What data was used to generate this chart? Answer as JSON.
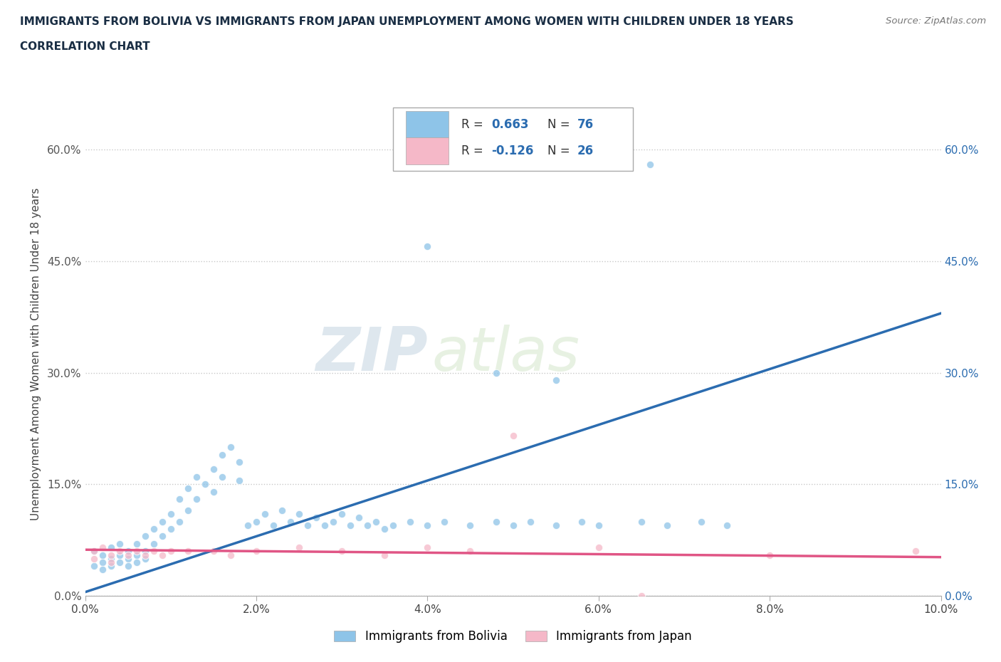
{
  "title_line1": "IMMIGRANTS FROM BOLIVIA VS IMMIGRANTS FROM JAPAN UNEMPLOYMENT AMONG WOMEN WITH CHILDREN UNDER 18 YEARS",
  "title_line2": "CORRELATION CHART",
  "source": "Source: ZipAtlas.com",
  "ylabel": "Unemployment Among Women with Children Under 18 years",
  "xlim": [
    0.0,
    0.1
  ],
  "ylim": [
    0.0,
    0.65
  ],
  "xticks": [
    0.0,
    0.02,
    0.04,
    0.06,
    0.08,
    0.1
  ],
  "yticks": [
    0.0,
    0.15,
    0.3,
    0.45,
    0.6
  ],
  "xticklabels": [
    "0.0%",
    "2.0%",
    "4.0%",
    "6.0%",
    "8.0%",
    "10.0%"
  ],
  "yticklabels": [
    "0.0%",
    "15.0%",
    "30.0%",
    "45.0%",
    "60.0%"
  ],
  "bolivia_color": "#8ec4e8",
  "japan_color": "#f5b8c8",
  "bolivia_line_color": "#2b6cb0",
  "japan_line_color": "#e05585",
  "bolivia_R": 0.663,
  "bolivia_N": 76,
  "japan_R": -0.126,
  "japan_N": 26,
  "watermark_zip": "ZIP",
  "watermark_atlas": "atlas",
  "bolivia_trend_x": [
    0.0,
    0.1
  ],
  "bolivia_trend_y": [
    0.005,
    0.38
  ],
  "japan_trend_x": [
    0.0,
    0.1
  ],
  "japan_trend_y": [
    0.062,
    0.052
  ],
  "bolivia_scatter_x": [
    0.001,
    0.001,
    0.002,
    0.002,
    0.002,
    0.003,
    0.003,
    0.003,
    0.004,
    0.004,
    0.004,
    0.005,
    0.005,
    0.005,
    0.006,
    0.006,
    0.006,
    0.007,
    0.007,
    0.007,
    0.008,
    0.008,
    0.009,
    0.009,
    0.01,
    0.01,
    0.011,
    0.011,
    0.012,
    0.012,
    0.013,
    0.013,
    0.014,
    0.015,
    0.015,
    0.016,
    0.016,
    0.017,
    0.018,
    0.018,
    0.019,
    0.02,
    0.021,
    0.022,
    0.023,
    0.024,
    0.025,
    0.026,
    0.027,
    0.028,
    0.029,
    0.03,
    0.031,
    0.032,
    0.033,
    0.034,
    0.035,
    0.036,
    0.038,
    0.04,
    0.042,
    0.045,
    0.048,
    0.05,
    0.052,
    0.055,
    0.058,
    0.06,
    0.065,
    0.068,
    0.072,
    0.075,
    0.04,
    0.048,
    0.055,
    0.066
  ],
  "bolivia_scatter_y": [
    0.06,
    0.04,
    0.055,
    0.045,
    0.035,
    0.065,
    0.05,
    0.04,
    0.07,
    0.055,
    0.045,
    0.06,
    0.05,
    0.04,
    0.07,
    0.055,
    0.045,
    0.08,
    0.06,
    0.05,
    0.09,
    0.07,
    0.1,
    0.08,
    0.11,
    0.09,
    0.13,
    0.1,
    0.145,
    0.115,
    0.16,
    0.13,
    0.15,
    0.17,
    0.14,
    0.19,
    0.16,
    0.2,
    0.18,
    0.155,
    0.095,
    0.1,
    0.11,
    0.095,
    0.115,
    0.1,
    0.11,
    0.095,
    0.105,
    0.095,
    0.1,
    0.11,
    0.095,
    0.105,
    0.095,
    0.1,
    0.09,
    0.095,
    0.1,
    0.095,
    0.1,
    0.095,
    0.1,
    0.095,
    0.1,
    0.095,
    0.1,
    0.095,
    0.1,
    0.095,
    0.1,
    0.095,
    0.47,
    0.3,
    0.29,
    0.58
  ],
  "japan_scatter_x": [
    0.001,
    0.001,
    0.002,
    0.003,
    0.003,
    0.004,
    0.005,
    0.006,
    0.007,
    0.008,
    0.009,
    0.01,
    0.012,
    0.015,
    0.017,
    0.02,
    0.025,
    0.03,
    0.035,
    0.04,
    0.045,
    0.05,
    0.06,
    0.065,
    0.08,
    0.097
  ],
  "japan_scatter_y": [
    0.06,
    0.05,
    0.065,
    0.055,
    0.045,
    0.06,
    0.055,
    0.06,
    0.055,
    0.06,
    0.055,
    0.06,
    0.06,
    0.06,
    0.055,
    0.06,
    0.065,
    0.06,
    0.055,
    0.065,
    0.06,
    0.215,
    0.065,
    0.0,
    0.055,
    0.06
  ]
}
